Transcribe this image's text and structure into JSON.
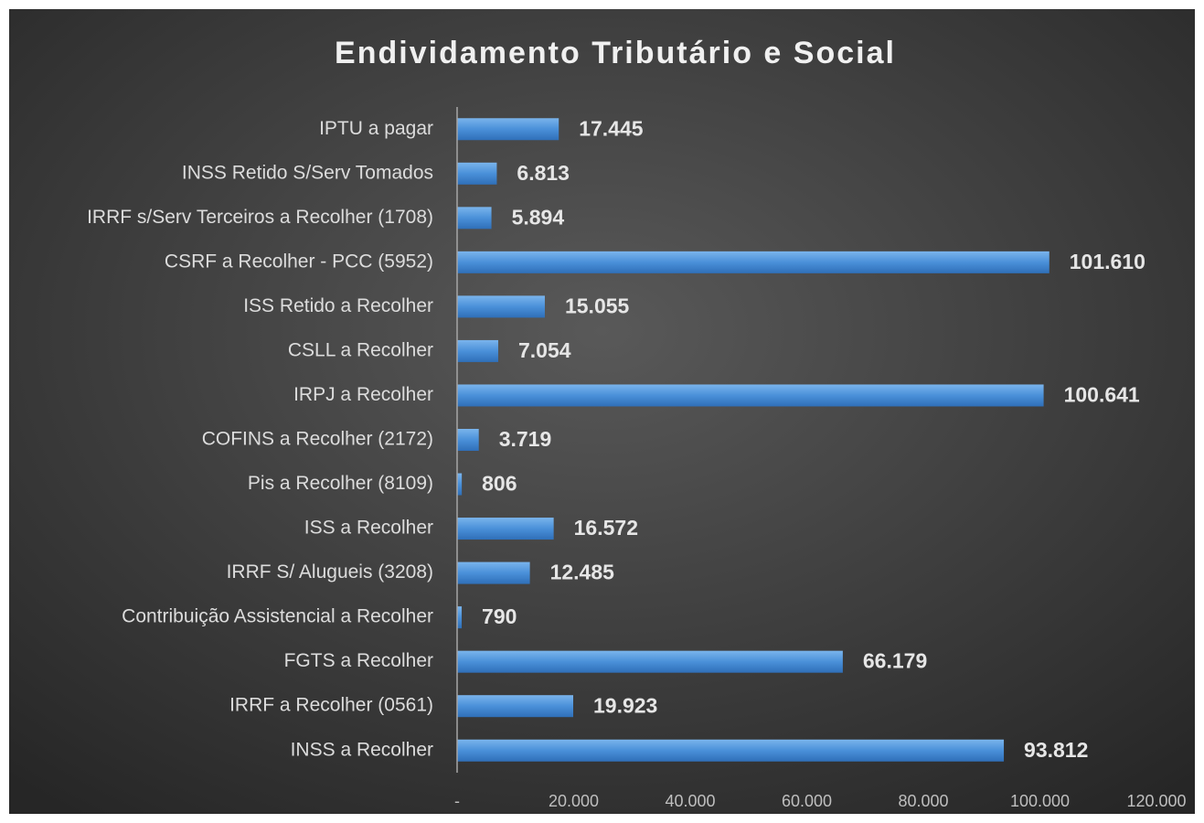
{
  "chart_data": {
    "type": "barh",
    "title": "Endividamento Tributário e Social",
    "categories": [
      "IPTU a pagar",
      "INSS Retido S/Serv Tomados",
      "IRRF s/Serv Terceiros a Recolher (1708)",
      "CSRF a Recolher - PCC (5952)",
      "ISS Retido a Recolher",
      "CSLL a Recolher",
      "IRPJ a Recolher",
      "COFINS a Recolher (2172)",
      "Pis a Recolher (8109)",
      "ISS a Recolher",
      "IRRF S/ Alugueis (3208)",
      "Contribuição Assistencial a Recolher",
      "FGTS a Recolher",
      "IRRF a Recolher (0561)",
      "INSS a Recolher"
    ],
    "values": [
      17445,
      6813,
      5894,
      101610,
      15055,
      7054,
      100641,
      3719,
      806,
      16572,
      12485,
      790,
      66179,
      19923,
      93812
    ],
    "value_labels": [
      "17.445",
      "6.813",
      "5.894",
      "101.610",
      "15.055",
      "7.054",
      "100.641",
      "3.719",
      "806",
      "16.572",
      "12.485",
      "790",
      "66.179",
      "19.923",
      "93.812"
    ],
    "color": "#4a90d9",
    "xlim": [
      0,
      120000
    ],
    "xticks": [
      {
        "value": 0,
        "label": "-"
      },
      {
        "value": 20000,
        "label": "20.000"
      },
      {
        "value": 40000,
        "label": "40.000"
      },
      {
        "value": 60000,
        "label": "60.000"
      },
      {
        "value": 80000,
        "label": "80.000"
      },
      {
        "value": 100000,
        "label": "100.000"
      },
      {
        "value": 120000,
        "label": "120.000"
      }
    ],
    "grid": false
  }
}
